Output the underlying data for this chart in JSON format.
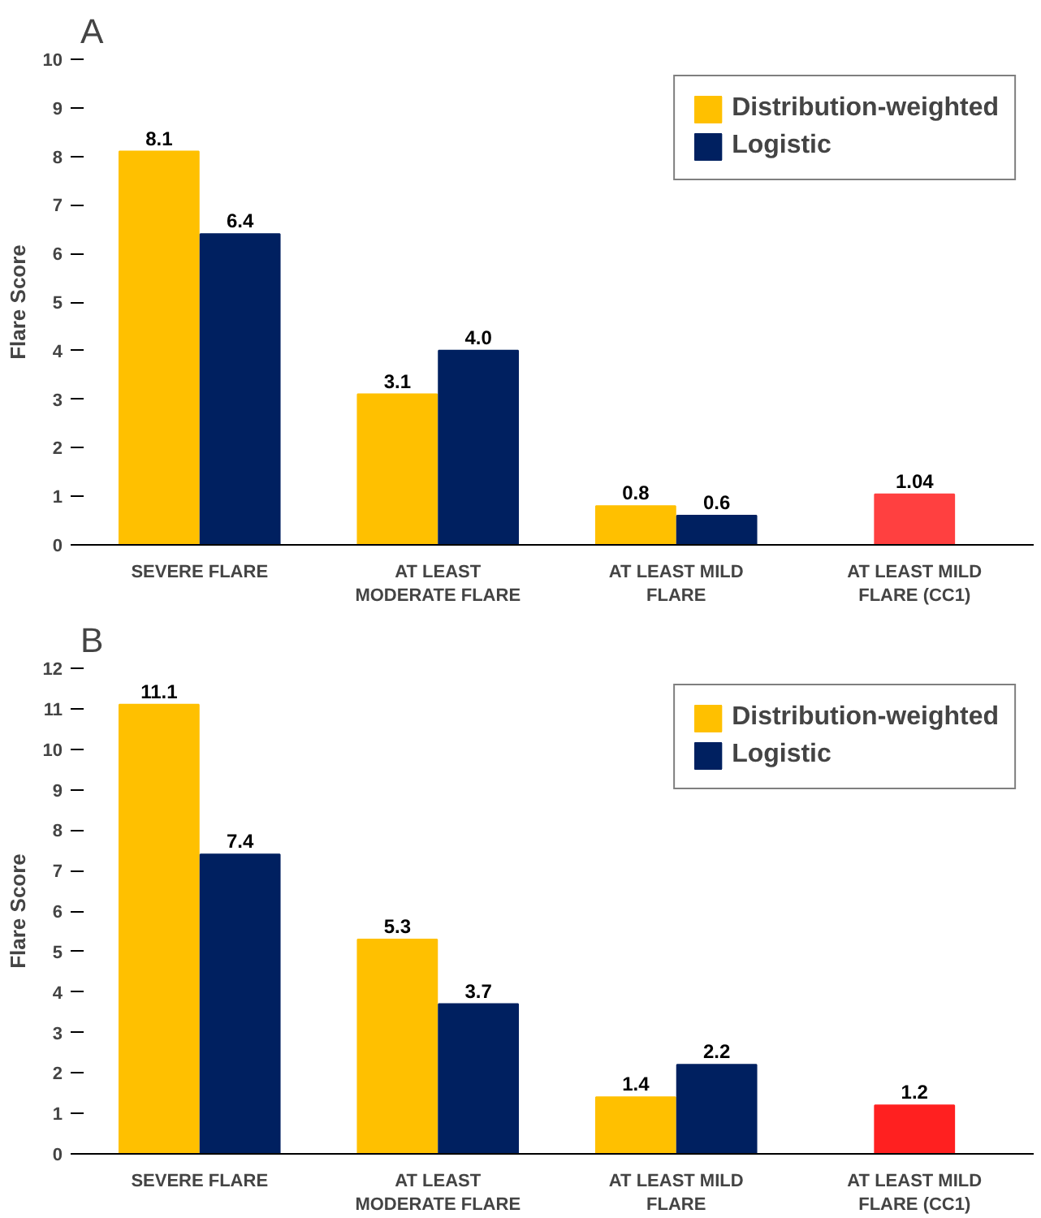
{
  "chart_data": [
    {
      "type": "bar",
      "title": "A",
      "ylabel": "Flare Score",
      "categories": [
        "SEVERE FLARE",
        "AT LEAST\nMODERATE FLARE",
        "AT LEAST MILD\nFLARE",
        "AT LEAST MILD\nFLARE (CC1)"
      ],
      "ylim": [
        0,
        10
      ],
      "yticks": [
        0,
        1,
        2,
        3,
        4,
        5,
        6,
        7,
        8,
        9,
        10
      ],
      "grid": false,
      "legend": "top right",
      "series": [
        {
          "name": "Distribution-weighted",
          "color": "#ffc000",
          "values": [
            8.1,
            3.1,
            0.8,
            null
          ],
          "value_labels": [
            "8.1",
            "3.1",
            "0.8",
            null
          ]
        },
        {
          "name": "Logistic",
          "color": "#002060",
          "values": [
            6.4,
            4.0,
            0.6,
            null
          ],
          "value_labels": [
            "6.4",
            "4.0",
            "0.6",
            null
          ]
        },
        {
          "color": "#ff4040",
          "values": [
            null,
            null,
            null,
            1.04
          ],
          "value_labels": [
            null,
            null,
            null,
            "1.04"
          ]
        }
      ]
    },
    {
      "type": "bar",
      "title": "B",
      "ylabel": "Flare Score",
      "categories": [
        "SEVERE FLARE",
        "AT LEAST\nMODERATE FLARE",
        "AT LEAST MILD\nFLARE",
        "AT LEAST MILD\nFLARE (CC1)"
      ],
      "ylim": [
        0,
        12
      ],
      "yticks": [
        0,
        1,
        2,
        3,
        4,
        5,
        6,
        7,
        8,
        9,
        10,
        11,
        12
      ],
      "grid": false,
      "legend": "top right",
      "series": [
        {
          "name": "Distribution-weighted",
          "color": "#ffc000",
          "values": [
            11.1,
            5.3,
            1.4,
            null
          ],
          "value_labels": [
            "11.1",
            "5.3",
            "1.4",
            null
          ]
        },
        {
          "name": "Logistic",
          "color": "#002060",
          "values": [
            7.4,
            3.7,
            2.2,
            null
          ],
          "value_labels": [
            "7.4",
            "3.7",
            "2.2",
            null
          ]
        },
        {
          "color": "#ff2020",
          "values": [
            null,
            null,
            null,
            1.2
          ],
          "value_labels": [
            null,
            null,
            null,
            "1.2"
          ]
        }
      ]
    }
  ]
}
